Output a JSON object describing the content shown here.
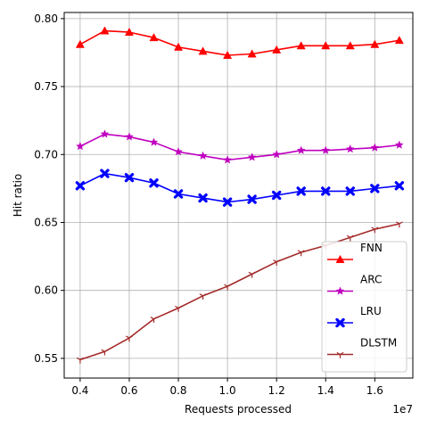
{
  "chart_data": {
    "type": "line",
    "xlabel": "Requests processed",
    "ylabel": "Hit ratio",
    "x_offset_text": "1e7",
    "xlim": [
      0.335,
      1.755
    ],
    "ylim": [
      0.5355,
      0.8045
    ],
    "xticks": [
      0.4,
      0.6,
      0.8,
      1.0,
      1.2,
      1.4,
      1.6
    ],
    "xtick_labels": [
      "0.4",
      "0.6",
      "0.8",
      "1.0",
      "1.2",
      "1.4",
      "1.6"
    ],
    "yticks": [
      0.55,
      0.6,
      0.65,
      0.7,
      0.75,
      0.8
    ],
    "ytick_labels": [
      "0.55",
      "0.60",
      "0.65",
      "0.70",
      "0.75",
      "0.80"
    ],
    "grid": true,
    "legend_position": "lower-right",
    "x": [
      0.4,
      0.5,
      0.6,
      0.7,
      0.8,
      0.9,
      1.0,
      1.1,
      1.2,
      1.3,
      1.4,
      1.5,
      1.6,
      1.7
    ],
    "series": [
      {
        "name": "FNN",
        "color": "#ff0000",
        "marker": "triangle",
        "values": [
          0.781,
          0.791,
          0.79,
          0.786,
          0.779,
          0.776,
          0.773,
          0.774,
          0.777,
          0.78,
          0.78,
          0.78,
          0.781,
          0.784
        ]
      },
      {
        "name": "ARC",
        "color": "#bf00bf",
        "marker": "star",
        "values": [
          0.706,
          0.715,
          0.713,
          0.709,
          0.702,
          0.699,
          0.696,
          0.698,
          0.7,
          0.703,
          0.703,
          0.704,
          0.705,
          0.707
        ]
      },
      {
        "name": "LRU",
        "color": "#0000ff",
        "marker": "x",
        "values": [
          0.677,
          0.686,
          0.683,
          0.679,
          0.671,
          0.668,
          0.665,
          0.667,
          0.67,
          0.673,
          0.673,
          0.673,
          0.675,
          0.677
        ]
      },
      {
        "name": "DLSTM",
        "color": "#a52a2a",
        "marker": "tri-down",
        "values": [
          0.549,
          0.555,
          0.565,
          0.579,
          0.587,
          0.596,
          0.603,
          0.612,
          0.621,
          0.628,
          0.633,
          0.639,
          0.645,
          0.649
        ]
      }
    ]
  }
}
